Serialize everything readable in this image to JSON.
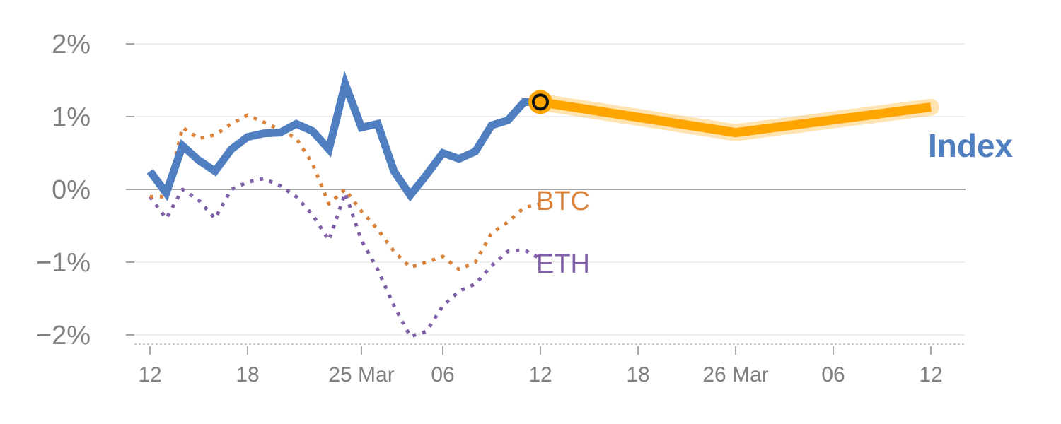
{
  "chart_data": {
    "type": "line",
    "title": "",
    "xlabel": "",
    "ylabel": "",
    "ylim": [
      -2.1,
      2.1
    ],
    "grid": true,
    "yticks": [
      {
        "value": 2,
        "label": "2%"
      },
      {
        "value": 1,
        "label": "1%"
      },
      {
        "value": 0,
        "label": "0%"
      },
      {
        "value": -1,
        "label": "−1%"
      },
      {
        "value": -2,
        "label": "−2%"
      }
    ],
    "xticks": [
      {
        "day": 0,
        "label": "12"
      },
      {
        "day": 6,
        "label": "18"
      },
      {
        "day": 13,
        "label": "25 Mar"
      },
      {
        "day": 18,
        "label": "06"
      },
      {
        "day": 24,
        "label": "12"
      },
      {
        "day": 30,
        "label": "18"
      },
      {
        "day": 36,
        "label": "26 Mar"
      },
      {
        "day": 42,
        "label": "06"
      },
      {
        "day": 48,
        "label": "12"
      }
    ],
    "series": [
      {
        "name": "Index",
        "color": "#4f7fc0",
        "style": "solid",
        "x": [
          0,
          1,
          2,
          3,
          4,
          5,
          6,
          7,
          8,
          9,
          10,
          11,
          12,
          13,
          14,
          15,
          16,
          17,
          18,
          19,
          20,
          21,
          22,
          23,
          24
        ],
        "values": [
          0.25,
          -0.05,
          0.6,
          0.4,
          0.25,
          0.55,
          0.72,
          0.77,
          0.78,
          0.9,
          0.8,
          0.55,
          1.45,
          0.85,
          0.9,
          0.25,
          -0.08,
          0.2,
          0.5,
          0.42,
          0.52,
          0.88,
          0.95,
          1.2,
          1.2
        ]
      },
      {
        "name": "BTC",
        "color": "#d9823b",
        "style": "dotted",
        "x": [
          0,
          1,
          2,
          3,
          4,
          5,
          6,
          7,
          8,
          9,
          10,
          11,
          12,
          13,
          14,
          15,
          16,
          17,
          18,
          19,
          20,
          21,
          22,
          23,
          24
        ],
        "values": [
          -0.1,
          -0.1,
          0.85,
          0.7,
          0.75,
          0.9,
          1.02,
          0.92,
          0.82,
          0.7,
          0.35,
          -0.2,
          0.0,
          -0.3,
          -0.55,
          -0.85,
          -1.07,
          -1.0,
          -0.92,
          -1.1,
          -1.0,
          -0.6,
          -0.45,
          -0.25,
          -0.2
        ]
      },
      {
        "name": "ETH",
        "color": "#7f5fa8",
        "style": "dotted",
        "x": [
          0,
          1,
          2,
          3,
          4,
          5,
          6,
          7,
          8,
          9,
          10,
          11,
          12,
          13,
          14,
          15,
          16,
          17,
          18,
          19,
          20,
          21,
          22,
          23,
          24
        ],
        "values": [
          -0.1,
          -0.4,
          0.0,
          -0.15,
          -0.4,
          0.0,
          0.1,
          0.15,
          0.05,
          -0.1,
          -0.35,
          -0.7,
          -0.05,
          -0.7,
          -1.1,
          -1.6,
          -2.02,
          -1.95,
          -1.6,
          -1.4,
          -1.3,
          -1.05,
          -0.85,
          -0.83,
          -0.95
        ]
      },
      {
        "name": "Index",
        "color": "#ffa500",
        "style": "forecast",
        "x": [
          24,
          36,
          48
        ],
        "values": [
          1.2,
          0.78,
          1.13
        ]
      }
    ],
    "labels": {
      "index": "Index",
      "btc": "BTC",
      "eth": "ETH"
    }
  }
}
